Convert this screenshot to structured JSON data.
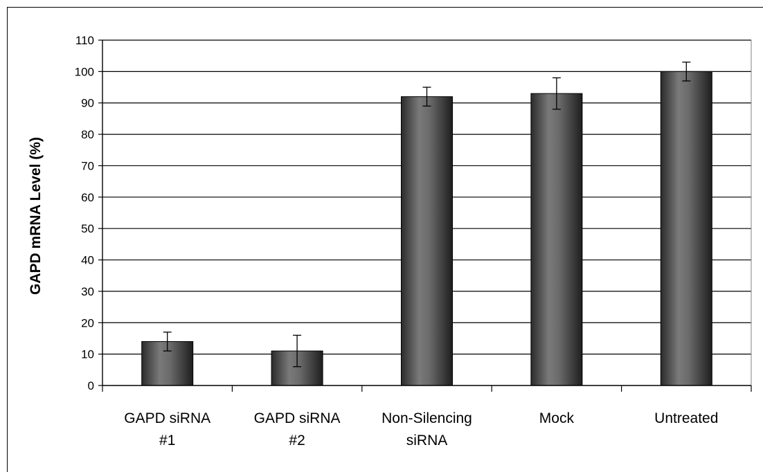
{
  "chart_data": {
    "type": "bar",
    "title": "",
    "xlabel": "",
    "ylabel": "GAPD mRNA Level (%)",
    "ylim": [
      0,
      110
    ],
    "yticks": [
      0,
      10,
      20,
      30,
      40,
      50,
      60,
      70,
      80,
      90,
      100,
      110
    ],
    "grid": true,
    "legend": "none",
    "categories": [
      [
        "GAPD siRNA",
        "#1"
      ],
      [
        "GAPD siRNA",
        "#2"
      ],
      [
        "Non-Silencing",
        "siRNA"
      ],
      [
        "Mock"
      ],
      [
        "Untreated"
      ]
    ],
    "series": [
      {
        "values": [
          14,
          11,
          92,
          93,
          100
        ],
        "error_low": [
          11,
          6,
          89,
          88,
          97
        ],
        "error_high": [
          17,
          16,
          95,
          98,
          103
        ]
      }
    ],
    "bar_color": "#555555",
    "grid_color": "#000000"
  }
}
